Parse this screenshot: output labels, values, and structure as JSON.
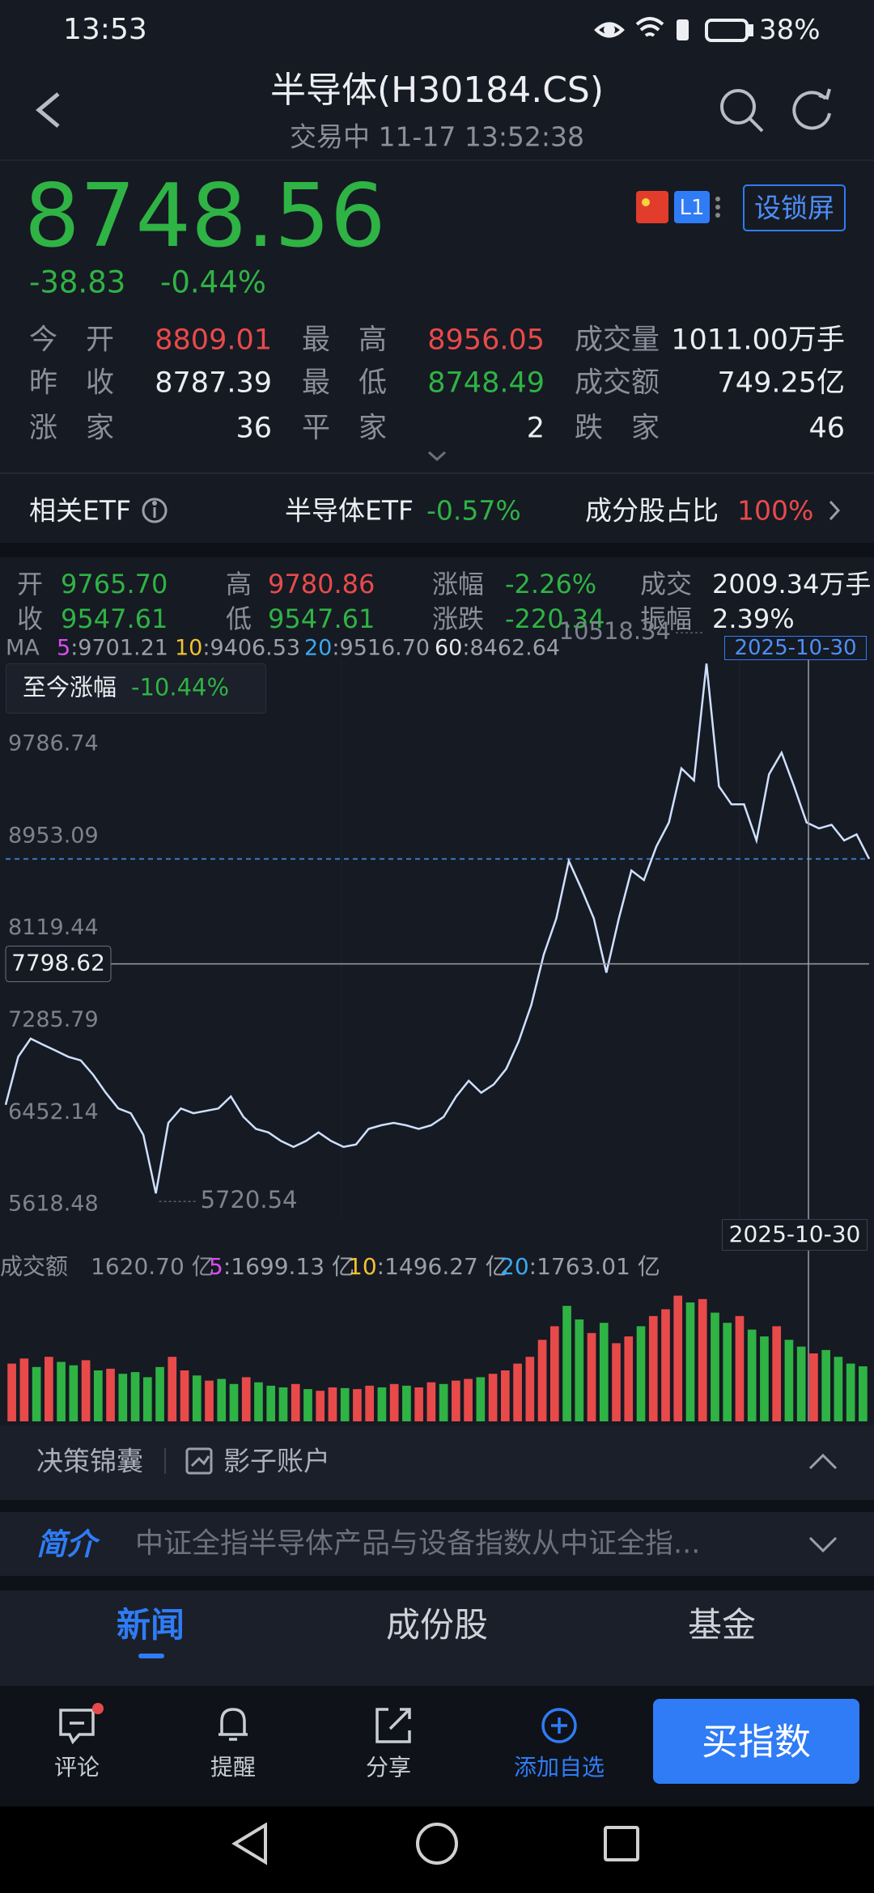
{
  "status_bar": {
    "time": "13:53",
    "battery": "38%"
  },
  "header": {
    "title": "半导体(H30184.CS)",
    "subtitle": "交易中 11-17 13:52:38",
    "badge": "L1",
    "lock_button": "设锁屏"
  },
  "quote": {
    "price": 8748.56,
    "change": "-38.83",
    "change_pct": "-0.44%"
  },
  "stats": [
    [
      {
        "label": "今开",
        "value": "8809.01"
      },
      {
        "label": "最高",
        "value": "8956.05"
      },
      {
        "label": "成交量",
        "value": "1011.00万手"
      }
    ],
    [
      {
        "label": "昨收",
        "value": "8787.39"
      },
      {
        "label": "最低",
        "value": "8748.49"
      },
      {
        "label": "成交额",
        "value": "749.25亿"
      }
    ],
    [
      {
        "label": "涨家",
        "value": 36
      },
      {
        "label": "平家",
        "value": 2
      },
      {
        "label": "跌家",
        "value": 46
      }
    ]
  ],
  "etf_row": {
    "label": "相关ETF",
    "etf": "半导体ETF",
    "etf_change": "-0.57%",
    "ratio_label": "成分股占比",
    "ratio": "100%"
  },
  "ohlc": [
    [
      {
        "label": "开",
        "value": "9765.70"
      },
      {
        "label": "高",
        "value": "9780.86"
      },
      {
        "label": "涨幅",
        "value": "-2.26%"
      },
      {
        "label": "成交",
        "value": "2009.34万手"
      }
    ],
    [
      {
        "label": "收",
        "value": "9547.61"
      },
      {
        "label": "低",
        "value": "9547.61"
      },
      {
        "label": "涨跌",
        "value": "-220.34"
      },
      {
        "label": "振幅",
        "value": "2.39%"
      }
    ]
  ],
  "ma": {
    "label": "MA",
    "items": [
      {
        "label": "5",
        "value": ":9701.21",
        "color": "#d84cf0"
      },
      {
        "label": "10",
        "value": ":9406.53",
        "color": "#f2c230"
      },
      {
        "label": "20",
        "value": ":9516.70",
        "color": "#3aa8f0"
      },
      {
        "label": "60",
        "value": ":8462.64",
        "color": "#e8e8e8"
      }
    ]
  },
  "since_badge": {
    "label": "至今涨幅",
    "value": "-10.44%"
  },
  "date_tag": "2025-10-30",
  "chart_data": [
    {
      "type": "line",
      "color": "#cfe0ff",
      "values": [
        6522,
        6957,
        7121,
        7066,
        7012,
        6957,
        6924,
        6794,
        6631,
        6489,
        6446,
        6250,
        5720.54,
        6358,
        6489,
        6446,
        6467,
        6489,
        6598,
        6413,
        6304,
        6272,
        6195,
        6141,
        6195,
        6272,
        6195,
        6141,
        6163,
        6304,
        6337,
        6359,
        6337,
        6304,
        6337,
        6413,
        6598,
        6740,
        6631,
        6707,
        6848,
        7098,
        7425,
        7882,
        8209,
        8731,
        8481,
        8209,
        7719,
        8209,
        8644,
        8557,
        8862,
        9079,
        9569,
        9460,
        10518.34,
        9406,
        9243,
        9243,
        8916,
        9515,
        9711,
        9406,
        9079,
        9025,
        9058,
        8916,
        8971,
        8749
      ],
      "ylim": [
        5487,
        10549
      ],
      "yticks": [
        9786.74,
        8953.09,
        8119.44,
        7285.79,
        6452.14,
        5618.48
      ],
      "grid": false,
      "crosshair_value": 7798.62
    },
    {
      "type": "bar",
      "values": [
        1700,
        1850,
        1600,
        1900,
        1750,
        1650,
        1800,
        1500,
        1550,
        1400,
        1450,
        1300,
        1600,
        1900,
        1500,
        1350,
        1200,
        1250,
        1100,
        1300,
        1150,
        1050,
        1000,
        1100,
        950,
        900,
        1000,
        980,
        950,
        1050,
        1000,
        1100,
        1050,
        1000,
        1150,
        1100,
        1200,
        1250,
        1300,
        1400,
        1500,
        1700,
        1900,
        2400,
        2800,
        3400,
        3000,
        2600,
        2900,
        2300,
        2500,
        2800,
        3100,
        3300,
        3700,
        3500,
        3600,
        3200,
        2900,
        3100,
        2700,
        2500,
        2800,
        2400,
        2200,
        2000,
        2100,
        1900,
        1700,
        1620.7
      ],
      "colors": [
        "#e84a4a",
        "#e84a4a",
        "#2fb344",
        "#e84a4a",
        "#2fb344",
        "#2fb344",
        "#e84a4a",
        "#2fb344",
        "#e84a4a",
        "#2fb344",
        "#2fb344",
        "#2fb344",
        "#2fb344",
        "#e84a4a",
        "#e84a4a",
        "#2fb344",
        "#e84a4a",
        "#2fb344",
        "#2fb344",
        "#e84a4a",
        "#2fb344",
        "#2fb344",
        "#2fb344",
        "#e84a4a",
        "#2fb344",
        "#e84a4a",
        "#e84a4a",
        "#2fb344",
        "#e84a4a",
        "#e84a4a",
        "#2fb344",
        "#e84a4a",
        "#2fb344",
        "#e84a4a",
        "#e84a4a",
        "#2fb344",
        "#e84a4a",
        "#e84a4a",
        "#2fb344",
        "#e84a4a",
        "#e84a4a",
        "#e84a4a",
        "#e84a4a",
        "#e84a4a",
        "#e84a4a",
        "#2fb344",
        "#2fb344",
        "#e84a4a",
        "#2fb344",
        "#e84a4a",
        "#e84a4a",
        "#2fb344",
        "#e84a4a",
        "#e84a4a",
        "#e84a4a",
        "#2fb344",
        "#e84a4a",
        "#2fb344",
        "#2fb344",
        "#e84a4a",
        "#2fb344",
        "#2fb344",
        "#e84a4a",
        "#2fb344",
        "#2fb344",
        "#e84a4a",
        "#2fb344",
        "#2fb344",
        "#2fb344",
        "#2fb344"
      ],
      "ylim": [
        0,
        4000
      ]
    }
  ],
  "volume_header": {
    "label": "成交额",
    "value": "1620.70 亿",
    "items": [
      {
        "label": "5",
        "value": ":1699.13 亿",
        "color": "#d84cf0"
      },
      {
        "label": "10",
        "value": ":1496.27 亿",
        "color": "#f2c230"
      },
      {
        "label": "20",
        "value": ":1763.01 亿",
        "color": "#3aa8f0"
      }
    ]
  },
  "tools": {
    "left": "决策锦囊",
    "right": "影子账户"
  },
  "intro": {
    "label": "简介",
    "text": "中证全指半导体产品与设备指数从中证全指..."
  },
  "tabs": [
    "新闻",
    "成份股",
    "基金"
  ],
  "bottom_nav": {
    "items": [
      "评论",
      "提醒",
      "分享",
      "添加自选"
    ],
    "buy": "买指数"
  }
}
